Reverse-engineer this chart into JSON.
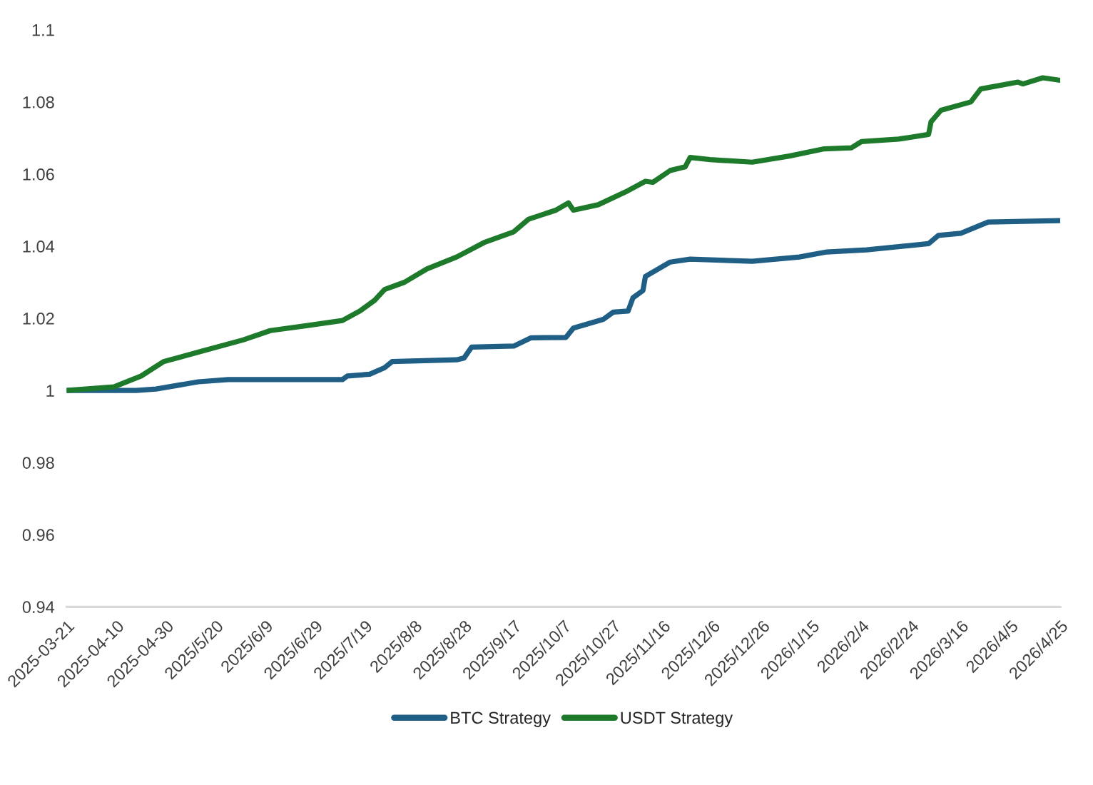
{
  "chart_data": {
    "type": "line",
    "series": [
      {
        "name": "BTC Strategy",
        "color": "#1f5f86",
        "x": [
          "2025-03-21",
          "2025-04-18",
          "2025-04-26",
          "2025-05-13",
          "2025-05-25",
          "2025-07-10",
          "2025-07-12",
          "2025-07-21",
          "2025-07-27",
          "2025-07-30",
          "2025-08-25",
          "2025-08-28",
          "2025-08-31",
          "2025-09-17",
          "2025-09-24",
          "2025-10-08",
          "2025-10-11",
          "2025-10-23",
          "2025-10-27",
          "2025-11-02",
          "2025-11-04",
          "2025-11-08",
          "2025-11-09",
          "2025-11-19",
          "2025-11-27",
          "2025-12-22",
          "2026-01-10",
          "2026-01-21",
          "2026-02-06",
          "2026-03-03",
          "2026-03-07",
          "2026-03-16",
          "2026-03-27",
          "2026-04-25"
        ],
        "values": [
          1.0,
          1.0,
          1.0004,
          1.0024,
          1.003,
          1.003,
          1.004,
          1.0045,
          1.0063,
          1.008,
          1.0085,
          1.009,
          1.012,
          1.0123,
          1.0146,
          1.0147,
          1.0173,
          1.0197,
          1.0217,
          1.022,
          1.0257,
          1.0277,
          1.0316,
          1.0356,
          1.0364,
          1.0358,
          1.037,
          1.0384,
          1.039,
          1.0407,
          1.043,
          1.0436,
          1.0467,
          1.0471
        ]
      },
      {
        "name": "USDT Strategy",
        "color": "#1e7a2b",
        "x": [
          "2025-03-21",
          "2025-04-09",
          "2025-04-20",
          "2025-04-29",
          "2025-05-15",
          "2025-05-31",
          "2025-06-11",
          "2025-06-26",
          "2025-07-10",
          "2025-07-17",
          "2025-07-23",
          "2025-07-27",
          "2025-08-04",
          "2025-08-13",
          "2025-08-25",
          "2025-09-05",
          "2025-09-17",
          "2025-09-23",
          "2025-10-04",
          "2025-10-09",
          "2025-10-11",
          "2025-10-21",
          "2025-11-02",
          "2025-11-09",
          "2025-11-12",
          "2025-11-19",
          "2025-11-25",
          "2025-11-27",
          "2025-12-05",
          "2025-12-22",
          "2026-01-06",
          "2026-01-20",
          "2026-01-31",
          "2026-02-04",
          "2026-02-19",
          "2026-03-03",
          "2026-03-04",
          "2026-03-08",
          "2026-03-20",
          "2026-03-24",
          "2026-04-08",
          "2026-04-10",
          "2026-04-18",
          "2026-04-25"
        ],
        "values": [
          1.0,
          1.001,
          1.004,
          1.008,
          1.011,
          1.014,
          1.0166,
          1.018,
          1.0194,
          1.022,
          1.025,
          1.028,
          1.03,
          1.0337,
          1.037,
          1.041,
          1.044,
          1.0475,
          1.05,
          1.052,
          1.05,
          1.0515,
          1.0554,
          1.058,
          1.0577,
          1.061,
          1.062,
          1.0646,
          1.064,
          1.0633,
          1.065,
          1.067,
          1.0673,
          1.069,
          1.0697,
          1.071,
          1.0745,
          1.0777,
          1.08,
          1.0836,
          1.0855,
          1.085,
          1.0867,
          1.086
        ]
      }
    ],
    "xlim": [
      "2025-03-21",
      "2026-04-25"
    ],
    "xticks": [
      {
        "value": "2025-03-21",
        "label": "2025-03-21"
      },
      {
        "value": "2025-04-10",
        "label": "2025-04-10"
      },
      {
        "value": "2025-04-30",
        "label": "2025-04-30"
      },
      {
        "value": "2025-05-20",
        "label": "2025/5/20"
      },
      {
        "value": "2025-06-09",
        "label": "2025/6/9"
      },
      {
        "value": "2025-06-29",
        "label": "2025/6/29"
      },
      {
        "value": "2025-07-19",
        "label": "2025/7/19"
      },
      {
        "value": "2025-08-08",
        "label": "2025/8/8"
      },
      {
        "value": "2025-08-28",
        "label": "2025/8/28"
      },
      {
        "value": "2025-09-17",
        "label": "2025/9/17"
      },
      {
        "value": "2025-10-07",
        "label": "2025/10/7"
      },
      {
        "value": "2025-10-27",
        "label": "2025/10/27"
      },
      {
        "value": "2025-11-16",
        "label": "2025/11/16"
      },
      {
        "value": "2025-12-06",
        "label": "2025/12/6"
      },
      {
        "value": "2025-12-26",
        "label": "2025/12/26"
      },
      {
        "value": "2026-01-15",
        "label": "2026/1/15"
      },
      {
        "value": "2026-02-04",
        "label": "2026/2/4"
      },
      {
        "value": "2026-02-24",
        "label": "2026/2/24"
      },
      {
        "value": "2026-03-16",
        "label": "2026/3/16"
      },
      {
        "value": "2026-04-05",
        "label": "2026/4/5"
      },
      {
        "value": "2026-04-25",
        "label": "2026/4/25"
      }
    ],
    "ylim": [
      0.94,
      1.1
    ],
    "yticks": [
      0.94,
      0.96,
      0.98,
      1,
      1.02,
      1.04,
      1.06,
      1.08,
      1.1
    ],
    "legend": "bottom",
    "line_style": "solid"
  }
}
